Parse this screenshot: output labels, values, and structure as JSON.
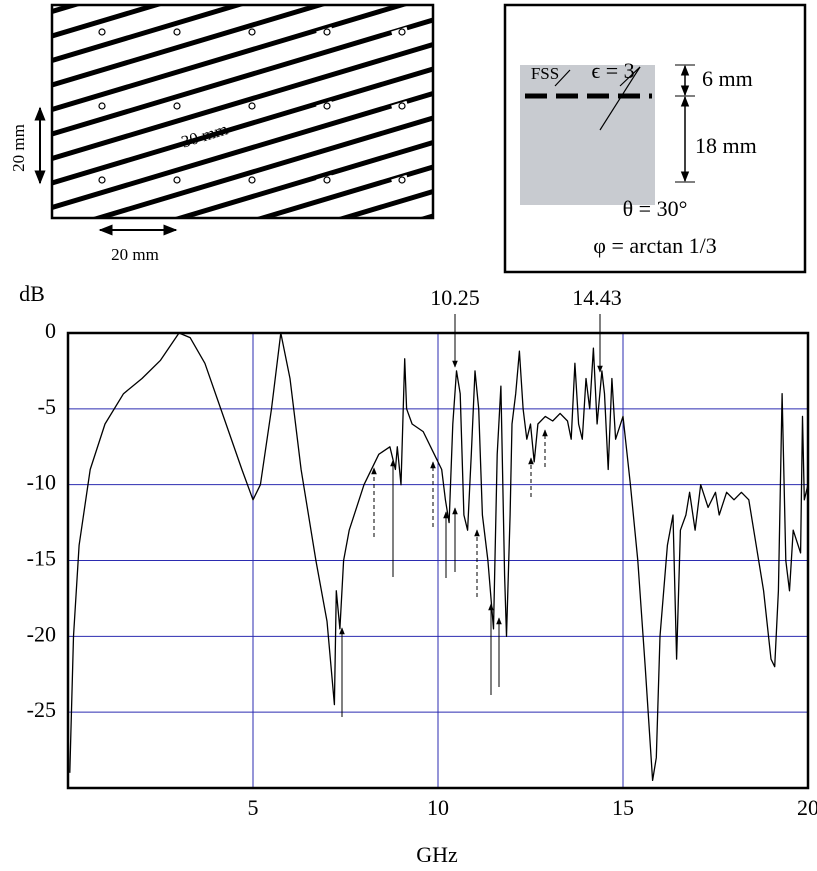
{
  "chart_data": {
    "type": "line",
    "ylabel": "dB",
    "xlabel": "GHz",
    "annotations": [
      "10.25",
      "14.43"
    ],
    "xlim": [
      0,
      20
    ],
    "xticks": [
      5,
      10,
      15,
      20
    ],
    "ylim": [
      -30,
      0
    ],
    "yticks": [
      0,
      -5,
      -10,
      -15,
      -20,
      -25
    ],
    "grid": true,
    "grid_color": "#2b2bb0",
    "color": "#000000",
    "x": [
      0.05,
      0.15,
      0.3,
      0.6,
      1.0,
      1.5,
      2.0,
      2.5,
      3.0,
      3.3,
      3.7,
      4.2,
      4.7,
      5.0,
      5.2,
      5.5,
      5.75,
      6.0,
      6.3,
      6.7,
      7.0,
      7.2,
      7.25,
      7.35,
      7.45,
      7.6,
      8.0,
      8.4,
      8.7,
      8.85,
      8.9,
      9.0,
      9.1,
      9.15,
      9.3,
      9.6,
      9.9,
      10.1,
      10.2,
      10.3,
      10.4,
      10.5,
      10.6,
      10.7,
      10.8,
      10.9,
      11.0,
      11.1,
      11.2,
      11.35,
      11.5,
      11.6,
      11.7,
      11.8,
      11.85,
      11.95,
      12.0,
      12.1,
      12.2,
      12.3,
      12.4,
      12.5,
      12.6,
      12.7,
      12.9,
      13.1,
      13.3,
      13.5,
      13.6,
      13.7,
      13.8,
      13.9,
      14.0,
      14.1,
      14.2,
      14.3,
      14.43,
      14.5,
      14.6,
      14.7,
      14.8,
      15.0,
      15.2,
      15.4,
      15.6,
      15.8,
      15.9,
      16.0,
      16.2,
      16.35,
      16.45,
      16.55,
      16.7,
      16.8,
      16.95,
      17.1,
      17.3,
      17.5,
      17.6,
      17.8,
      18.0,
      18.2,
      18.4,
      18.6,
      18.8,
      19.0,
      19.1,
      19.2,
      19.3,
      19.4,
      19.5,
      19.6,
      19.8,
      19.85,
      19.9,
      20.0
    ],
    "values": [
      -29,
      -20,
      -14,
      -9,
      -6,
      -4,
      -3,
      -1.8,
      0,
      -0.3,
      -2,
      -5.5,
      -9,
      -11,
      -10,
      -5,
      0,
      -3,
      -9,
      -15,
      -19,
      -24.5,
      -17,
      -19.5,
      -15,
      -13,
      -10,
      -8,
      -7.5,
      -9,
      -7.5,
      -10,
      -1.7,
      -5,
      -6,
      -6.5,
      -8,
      -9,
      -11,
      -12.5,
      -6,
      -2.5,
      -4,
      -12,
      -13,
      -8,
      -2.5,
      -5,
      -12,
      -15,
      -19.5,
      -8,
      -3.5,
      -16,
      -20,
      -12,
      -6,
      -4,
      -1.2,
      -5,
      -7,
      -6,
      -8.5,
      -6,
      -5.5,
      -5.8,
      -5.3,
      -5.8,
      -7,
      -2,
      -6,
      -7,
      -3,
      -5,
      -1,
      -6,
      -2.5,
      -4,
      -9,
      -3,
      -7,
      -5.5,
      -10,
      -15,
      -22,
      -29.5,
      -28,
      -20,
      -14,
      -12,
      -21.5,
      -13,
      -12,
      -10.5,
      -13,
      -10,
      -11.5,
      -10.5,
      -12,
      -10.5,
      -11,
      -10.5,
      -11,
      -14,
      -17,
      -21.5,
      -22,
      -17,
      -4,
      -15,
      -17,
      -13,
      -14.5,
      -5.5,
      -11,
      -10
    ]
  },
  "inset_left": {
    "labels": [
      "20 mm",
      "30 mm",
      "20 mm"
    ]
  },
  "inset_right": {
    "labels": [
      "FSS",
      "ϵ = 3",
      "6 mm",
      "18 mm",
      "θ = 30°",
      "φ = arctan 1/3"
    ]
  }
}
